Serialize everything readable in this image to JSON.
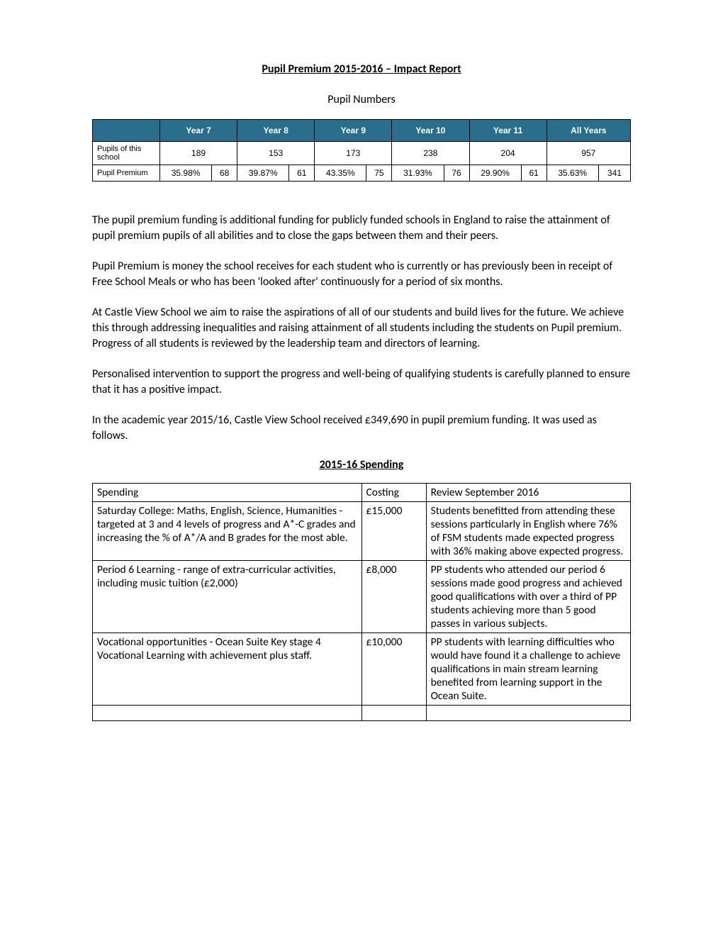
{
  "title": "Pupil Premium 2015-2016 – Impact Report",
  "subtitle": "Pupil Numbers",
  "pupils_table": {
    "header_bg": "#2a6e8e",
    "header_fg": "#ffffff",
    "border_color": "#000000",
    "columns": [
      "Year 7",
      "Year 8",
      "Year 9",
      "Year 10",
      "Year 11",
      "All Years"
    ],
    "row1_label": "Pupils of this school",
    "row1_values": [
      "189",
      "153",
      "173",
      "238",
      "204",
      "957"
    ],
    "row2_label": "Pupil Premium",
    "row2_values": [
      {
        "pct": "35.98%",
        "n": "68"
      },
      {
        "pct": "39.87%",
        "n": "61"
      },
      {
        "pct": "43.35%",
        "n": "75"
      },
      {
        "pct": "31.93%",
        "n": "76"
      },
      {
        "pct": "29.90%",
        "n": "61"
      },
      {
        "pct": "35.63%",
        "n": "341"
      }
    ]
  },
  "paragraphs": [
    "The pupil premium funding is additional funding for publicly funded schools in England to raise the attainment of pupil premium pupils of all abilities and to close the gaps between them and their peers.",
    "Pupil Premium is money the school receives for each student who is currently or has previously been in receipt of Free School Meals or who has been 'looked after' continuously for a period of six months.",
    "At Castle View School we aim to raise the aspirations of all of our students and build lives for the future. We achieve this through addressing inequalities and raising attainment of all students including the students on Pupil premium. Progress of all students is reviewed by the leadership team and directors of learning.",
    "Personalised intervention to support the progress and well-being of qualifying students is carefully planned to ensure that it has a positive impact.",
    "In the academic year 2015/16, Castle View School received £349,690 in pupil premium funding. It was used as follows."
  ],
  "spending_heading": "2015-16 Spending",
  "spending_table": {
    "headers": [
      "Spending",
      "Costing",
      "Review September 2016"
    ],
    "rows": [
      {
        "spending": "Saturday College: Maths, English, Science, Humanities - targeted at 3 and 4 levels of progress and A*-C grades and increasing the % of A*/A and B grades for the most able.",
        "costing": "£15,000",
        "review": "Students benefitted from attending these sessions particularly in English where 76% of FSM students made expected progress with 36% making above expected progress."
      },
      {
        "spending": "Period 6 Learning - range of extra-curricular activities, including music tuition (£2,000)",
        "costing": "£8,000",
        "review": "PP students who attended our period 6 sessions made good progress and achieved good qualifications with over a third of PP students achieving more than 5 good passes in various subjects."
      },
      {
        "spending": "Vocational opportunities - Ocean Suite Key stage 4 Vocational Learning with achievement plus staff.",
        "costing": "£10,000",
        "review": "PP students with learning difficulties who would have found it a challenge to achieve qualifications in main stream learning benefited from learning support in the Ocean Suite."
      }
    ]
  }
}
